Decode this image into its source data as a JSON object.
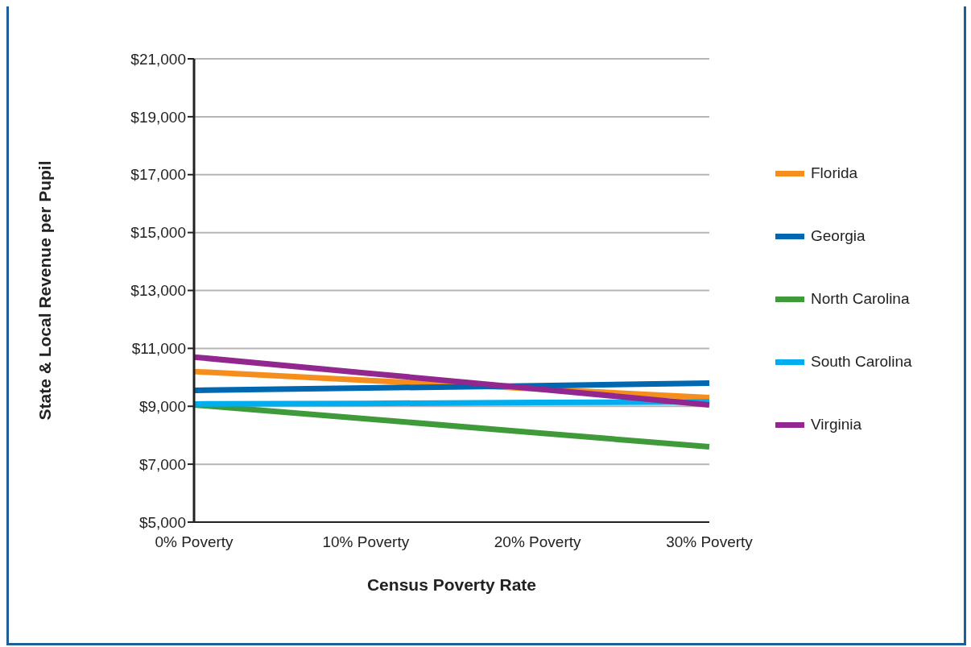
{
  "chart_data": {
    "type": "line",
    "xlabel": "Census Poverty Rate",
    "ylabel": "State & Local Revenue per Pupil",
    "categories": [
      "0% Poverty",
      "10% Poverty",
      "20% Poverty",
      "30% Poverty"
    ],
    "series": [
      {
        "name": "Florida",
        "color": "#f68e1e",
        "values": [
          10200,
          9900,
          9600,
          9300
        ]
      },
      {
        "name": "Georgia",
        "color": "#0067b1",
        "values": [
          9550,
          9630,
          9710,
          9800
        ]
      },
      {
        "name": "North Carolina",
        "color": "#3f9a3a",
        "values": [
          9050,
          8570,
          8080,
          7600
        ]
      },
      {
        "name": "South Carolina",
        "color": "#00aeef",
        "values": [
          9080,
          9100,
          9130,
          9150
        ]
      },
      {
        "name": "Virginia",
        "color": "#92278f",
        "values": [
          10700,
          10150,
          9600,
          9050
        ]
      }
    ],
    "ylim": [
      5000,
      21000
    ],
    "yticks": [
      {
        "value": 5000,
        "label": "$5,000"
      },
      {
        "value": 7000,
        "label": "$7,000"
      },
      {
        "value": 9000,
        "label": "$9,000"
      },
      {
        "value": 11000,
        "label": "$11,000"
      },
      {
        "value": 13000,
        "label": "$13,000"
      },
      {
        "value": 15000,
        "label": "$15,000"
      },
      {
        "value": 17000,
        "label": "$17,000"
      },
      {
        "value": 19000,
        "label": "$19,000"
      },
      {
        "value": 21000,
        "label": "$21,000"
      }
    ],
    "grid": "y",
    "legend": "right",
    "marker": "none",
    "line_style": "solid"
  }
}
